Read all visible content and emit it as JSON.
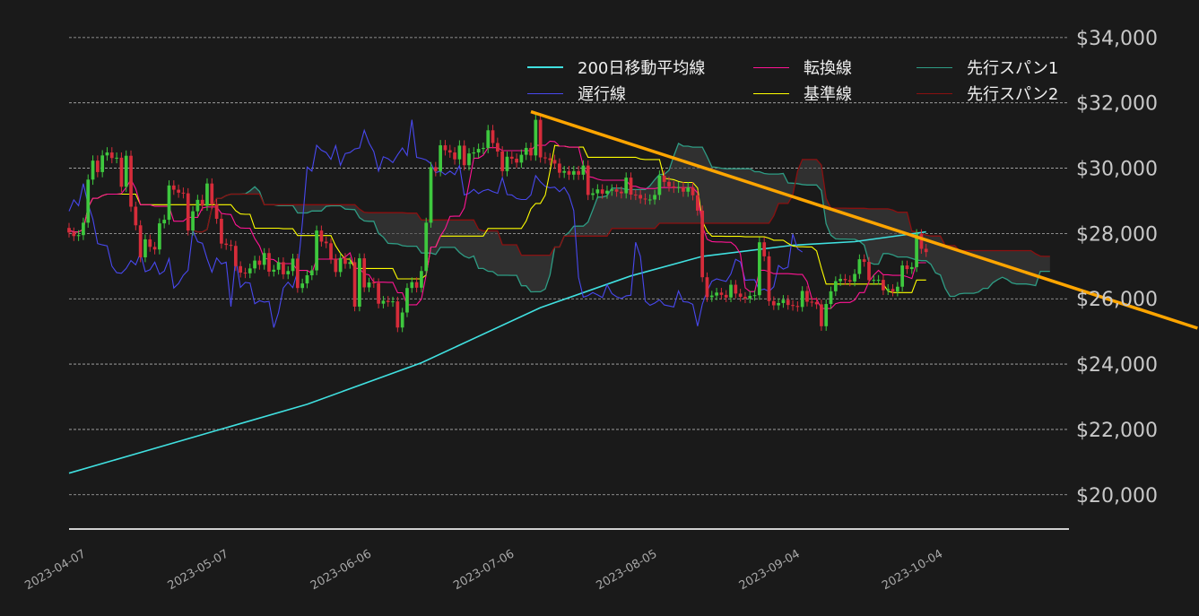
{
  "chart_data": {
    "type": "candlestick",
    "start_date": "2023-04-06",
    "close": [
      28030,
      27920,
      27950,
      28330,
      29650,
      30230,
      29880,
      30390,
      30480,
      30310,
      30320,
      29430,
      30380,
      28820,
      28250,
      27270,
      27820,
      27590,
      27510,
      28310,
      28420,
      29470,
      29340,
      29250,
      29230,
      28090,
      28680,
      29030,
      28850,
      29530,
      28900,
      28450,
      27690,
      27650,
      27620,
      27000,
      26800,
      26780,
      26930,
      27170,
      27040,
      27400,
      26830,
      26890,
      27120,
      26750,
      26850,
      27230,
      26330,
      26470,
      26720,
      26870,
      28090,
      27750,
      27700,
      27220,
      26820,
      27250,
      27070,
      27120,
      25760,
      27240,
      26350,
      26500,
      26480,
      25850,
      25940,
      25900,
      25920,
      25120,
      25580,
      26330,
      26510,
      26340,
      26850,
      28330,
      30030,
      29910,
      30700,
      30550,
      30480,
      30270,
      30690,
      30090,
      30450,
      30480,
      30590,
      30620,
      31160,
      30770,
      30510,
      29910,
      30350,
      30290,
      30170,
      30410,
      30620,
      30390,
      31480,
      30330,
      30300,
      30250,
      30140,
      29860,
      29910,
      29800,
      29910,
      29800,
      30080,
      29180,
      29230,
      29350,
      29220,
      29310,
      29350,
      29280,
      29230,
      29710,
      29190,
      29180,
      29070,
      29040,
      29040,
      29180,
      29770,
      29580,
      29440,
      29400,
      29420,
      29280,
      29410,
      29170,
      28700,
      26660,
      26050,
      26100,
      26190,
      26120,
      26040,
      26430,
      26160,
      26060,
      26010,
      26090,
      26110,
      27730,
      27300,
      25930,
      25800,
      25870,
      25970,
      25810,
      25780,
      25750,
      26240,
      25910,
      25900,
      25830,
      25160,
      25840,
      26230,
      26540,
      26610,
      26570,
      26530,
      26760,
      27210,
      27130,
      26570,
      26580,
      26580,
      26260,
      26300,
      26220,
      26370,
      27020,
      26910,
      26970,
      27980,
      27530,
      27430
    ],
    "first_open": 28170,
    "moving_average_200": [
      [
        "2023-04-06",
        20660
      ],
      [
        "2023-05-26",
        22770
      ],
      [
        "2023-06-19",
        24040
      ],
      [
        "2023-07-14",
        25730
      ],
      [
        "2023-08-02",
        26700
      ],
      [
        "2023-08-17",
        27300
      ],
      [
        "2023-09-05",
        27640
      ],
      [
        "2023-09-18",
        27750
      ],
      [
        "2023-10-03",
        28050
      ]
    ],
    "trendline": {
      "color": "#ffa500",
      "points": [
        [
          "2023-07-12",
          31730
        ],
        [
          "2023-11-29",
          25100
        ]
      ]
    },
    "ichimoku": {
      "tenkan": 9,
      "kijun": 26,
      "span_b": 52,
      "shift": 26
    },
    "y_ticks": [
      20000,
      22000,
      24000,
      26000,
      28000,
      30000,
      32000,
      34000
    ],
    "y_tick_labels": [
      "$20,000",
      "$22,000",
      "$24,000",
      "$26,000",
      "$28,000",
      "$30,000",
      "$32,000",
      "$34,000"
    ],
    "x_ticks": [
      "2023-04-07",
      "2023-05-07",
      "2023-06-06",
      "2023-07-06",
      "2023-08-05",
      "2023-09-04",
      "2023-10-04"
    ],
    "ylim": [
      18950,
      34600
    ],
    "xlim": [
      "2023-04-06",
      "2023-11-02"
    ],
    "grid": "horizontal-dashed",
    "y_axis_side": "right",
    "legend_placement": "top-right",
    "legend": [
      {
        "name": "200日移動平均線",
        "color": "#40e0e0"
      },
      {
        "name": "遅行線",
        "color": "#4848ee"
      },
      {
        "name": "転換線",
        "color": "#ff1493"
      },
      {
        "name": "基準線",
        "color": "#ffff00"
      },
      {
        "name": "先行スパン1",
        "color": "#2e9c84"
      },
      {
        "name": "先行スパン2",
        "color": "#8b1010"
      }
    ],
    "colors": {
      "up": "#3ec83e",
      "down": "#d62c3a",
      "cloud": "#444444",
      "background": "#1a1a1a",
      "grid": "#b0b0b0",
      "axis_text": "#c8c8c8"
    }
  }
}
